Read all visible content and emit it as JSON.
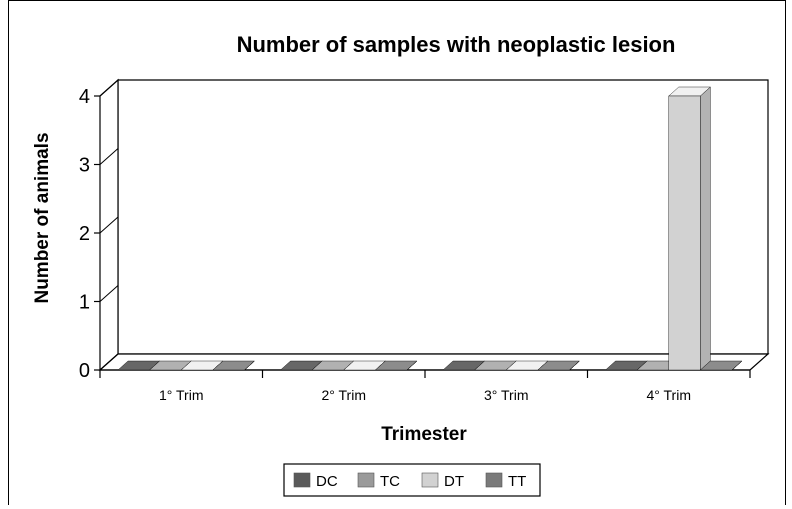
{
  "chart_data": {
    "type": "bar",
    "title": "Number of samples with neoplastic lesion",
    "xlabel": "Trimester",
    "ylabel": "Number of animals",
    "categories": [
      "1° Trim",
      "2° Trim",
      "3° Trim",
      "4° Trim"
    ],
    "yticks": [
      "0",
      "1",
      "2",
      "3",
      "4"
    ],
    "ylim": [
      0,
      4
    ],
    "series": [
      {
        "name": "DC",
        "color": "#5a5a5a",
        "values": [
          0,
          0,
          0,
          0
        ]
      },
      {
        "name": "TC",
        "color": "#9a9a9a",
        "values": [
          0,
          0,
          0,
          0
        ]
      },
      {
        "name": "DT",
        "color": "#d2d2d2",
        "values": [
          0,
          0,
          0,
          4
        ]
      },
      {
        "name": "TT",
        "color": "#7a7a7a",
        "values": [
          0,
          0,
          0,
          0
        ]
      }
    ],
    "legend_position": "bottom",
    "style": "3d"
  }
}
